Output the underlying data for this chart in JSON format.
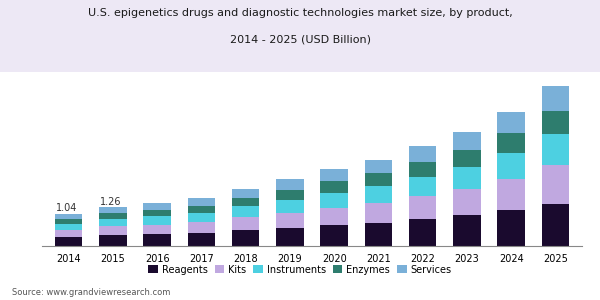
{
  "years": [
    2014,
    2015,
    2016,
    2017,
    2018,
    2019,
    2020,
    2021,
    2022,
    2023,
    2024,
    2025
  ],
  "reagents": [
    0.3,
    0.36,
    0.38,
    0.42,
    0.52,
    0.58,
    0.68,
    0.75,
    0.88,
    1.0,
    1.15,
    1.35
  ],
  "kits": [
    0.22,
    0.27,
    0.3,
    0.34,
    0.4,
    0.48,
    0.55,
    0.62,
    0.72,
    0.82,
    1.0,
    1.25
  ],
  "instruments": [
    0.2,
    0.25,
    0.27,
    0.3,
    0.35,
    0.42,
    0.48,
    0.55,
    0.62,
    0.72,
    0.85,
    1.0
  ],
  "enzymes": [
    0.14,
    0.18,
    0.2,
    0.23,
    0.27,
    0.32,
    0.37,
    0.42,
    0.48,
    0.55,
    0.62,
    0.72
  ],
  "services": [
    0.18,
    0.2,
    0.22,
    0.25,
    0.29,
    0.34,
    0.38,
    0.43,
    0.5,
    0.58,
    0.68,
    0.8
  ],
  "colors": {
    "reagents": "#1a0a2e",
    "kits": "#c0a8e0",
    "instruments": "#4dd0e1",
    "enzymes": "#2e7d6e",
    "services": "#7ab0d8"
  },
  "title_line1": "U.S. epigenetics drugs and diagnostic technologies market size, by product,",
  "title_line2": "2014 - 2025 (USD Billion)",
  "source": "Source: www.grandviewresearch.com",
  "label_2014": "1.04",
  "label_2015": "1.26",
  "ylim": [
    0,
    5.2
  ],
  "background_color": "#ffffff",
  "title_color": "#1a1a1a",
  "header_bg": "#ede8f5"
}
